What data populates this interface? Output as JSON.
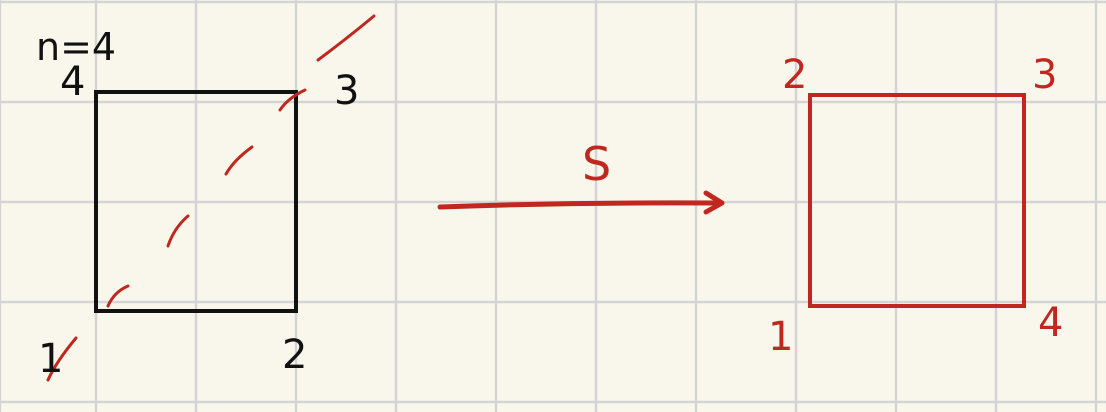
{
  "colors": {
    "paper": "#f9f7ec",
    "grid": "#d4d4d6",
    "ink_black": "#111111",
    "ink_red": "#c0281f"
  },
  "note": "n=4",
  "left_square": {
    "corners": {
      "bottom_left": "1",
      "bottom_right": "2",
      "top_right": "3",
      "top_left": "4"
    }
  },
  "map_label": "S",
  "right_square": {
    "corners": {
      "bottom_left": "1",
      "top_left": "2",
      "top_right": "3",
      "bottom_right": "4"
    }
  }
}
